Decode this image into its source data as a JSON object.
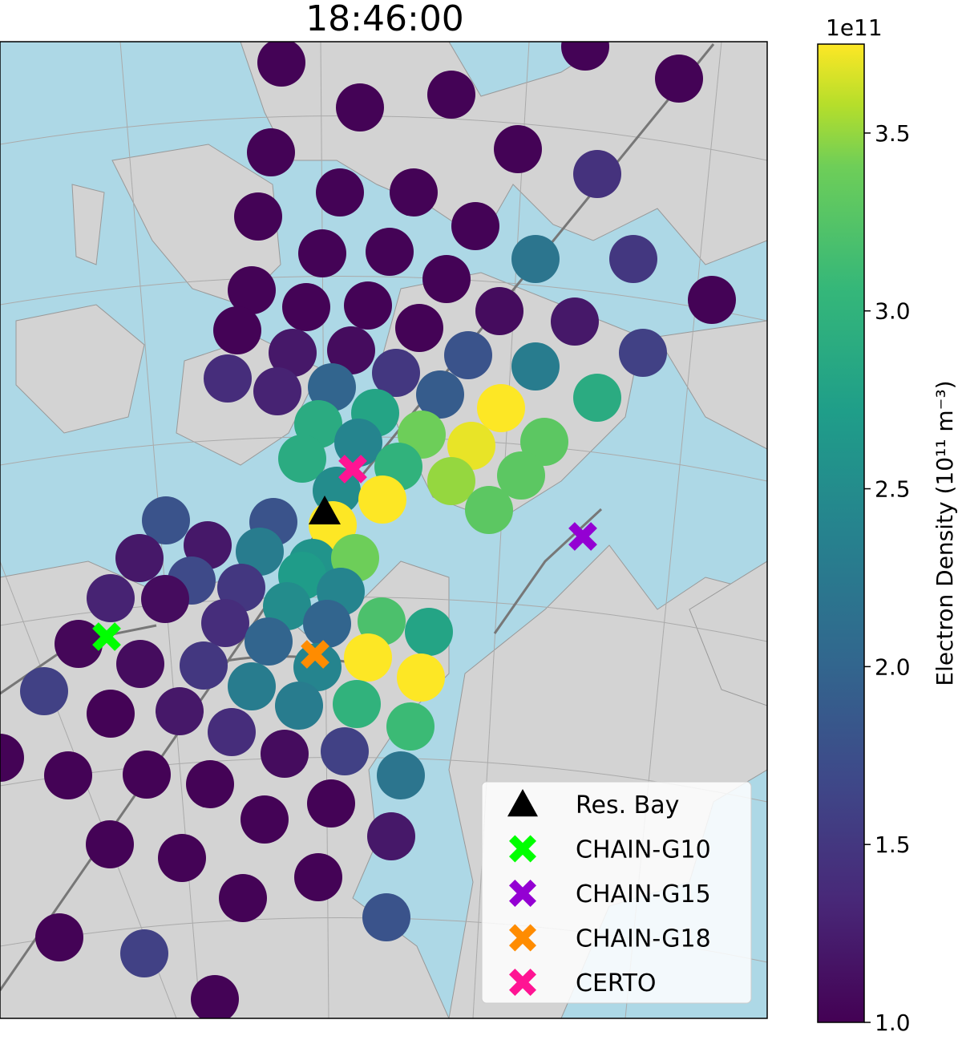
{
  "chart_data": {
    "type": "scatter",
    "title": "18:46:00",
    "colorbar": {
      "label": "Electron Density (10¹¹ m⁻³)",
      "offset_label": "1e11",
      "colormap": "viridis",
      "clim": [
        1.0,
        3.75
      ],
      "ticks": [
        {
          "value": 1,
          "label": "1.0"
        },
        1.5,
        {
          "value": 2,
          "label": "2.0"
        },
        2.5,
        {
          "value": 3,
          "label": "3.0"
        },
        3.5
      ]
    },
    "values": [
      1.02,
      1.02,
      1.02,
      1.02,
      1.02,
      1.02,
      1.02,
      1.45,
      1.02,
      1.02,
      1.02,
      1.02,
      1.02,
      1.02,
      2.2,
      1.5,
      1.02,
      1.02,
      1.02,
      1.02,
      1.02,
      1.1,
      1.2,
      1.02,
      1.02,
      1.2,
      1.1,
      1.8,
      2.3,
      1.6,
      1.4,
      1.5,
      1.3,
      2.0,
      1.9,
      2.9,
      3.75,
      2.8,
      2.9,
      3.4,
      2.4,
      3.7,
      3.3,
      2.9,
      3.0,
      3.5,
      3.3,
      2.5,
      3.75,
      3.3,
      1.8,
      1.8,
      3.75,
      1.2,
      2.3,
      1.2,
      2.6,
      3.4,
      1.7,
      1.5,
      2.7,
      1.3,
      2.5,
      2.4,
      1.1,
      1.4,
      3.2,
      2.8,
      1.05,
      2.0,
      2.0,
      1.1,
      1.5,
      3.75,
      3.75,
      2.4,
      2.3,
      1.6,
      3.0,
      2.3,
      1.02,
      1.2,
      3.1,
      1.4,
      1.02,
      1.6,
      1.1,
      1.02,
      1.02,
      1.02,
      2.2,
      1.02,
      1.02,
      1.2,
      1.02,
      1.02,
      1.02,
      1.02,
      1.8,
      1.02,
      1.6,
      1.02
    ],
    "stations": [
      {
        "name": "Res. Bay",
        "marker": "triangle",
        "color": "#000000"
      },
      {
        "name": "CHAIN-G10",
        "marker": "x",
        "color": "#00ff00"
      },
      {
        "name": "CHAIN-G15",
        "marker": "x",
        "color": "#9400d3"
      },
      {
        "name": "CHAIN-G18",
        "marker": "x",
        "color": "#ff8c00"
      },
      {
        "name": "CERTO",
        "marker": "x",
        "color": "#ff1493"
      }
    ]
  }
}
